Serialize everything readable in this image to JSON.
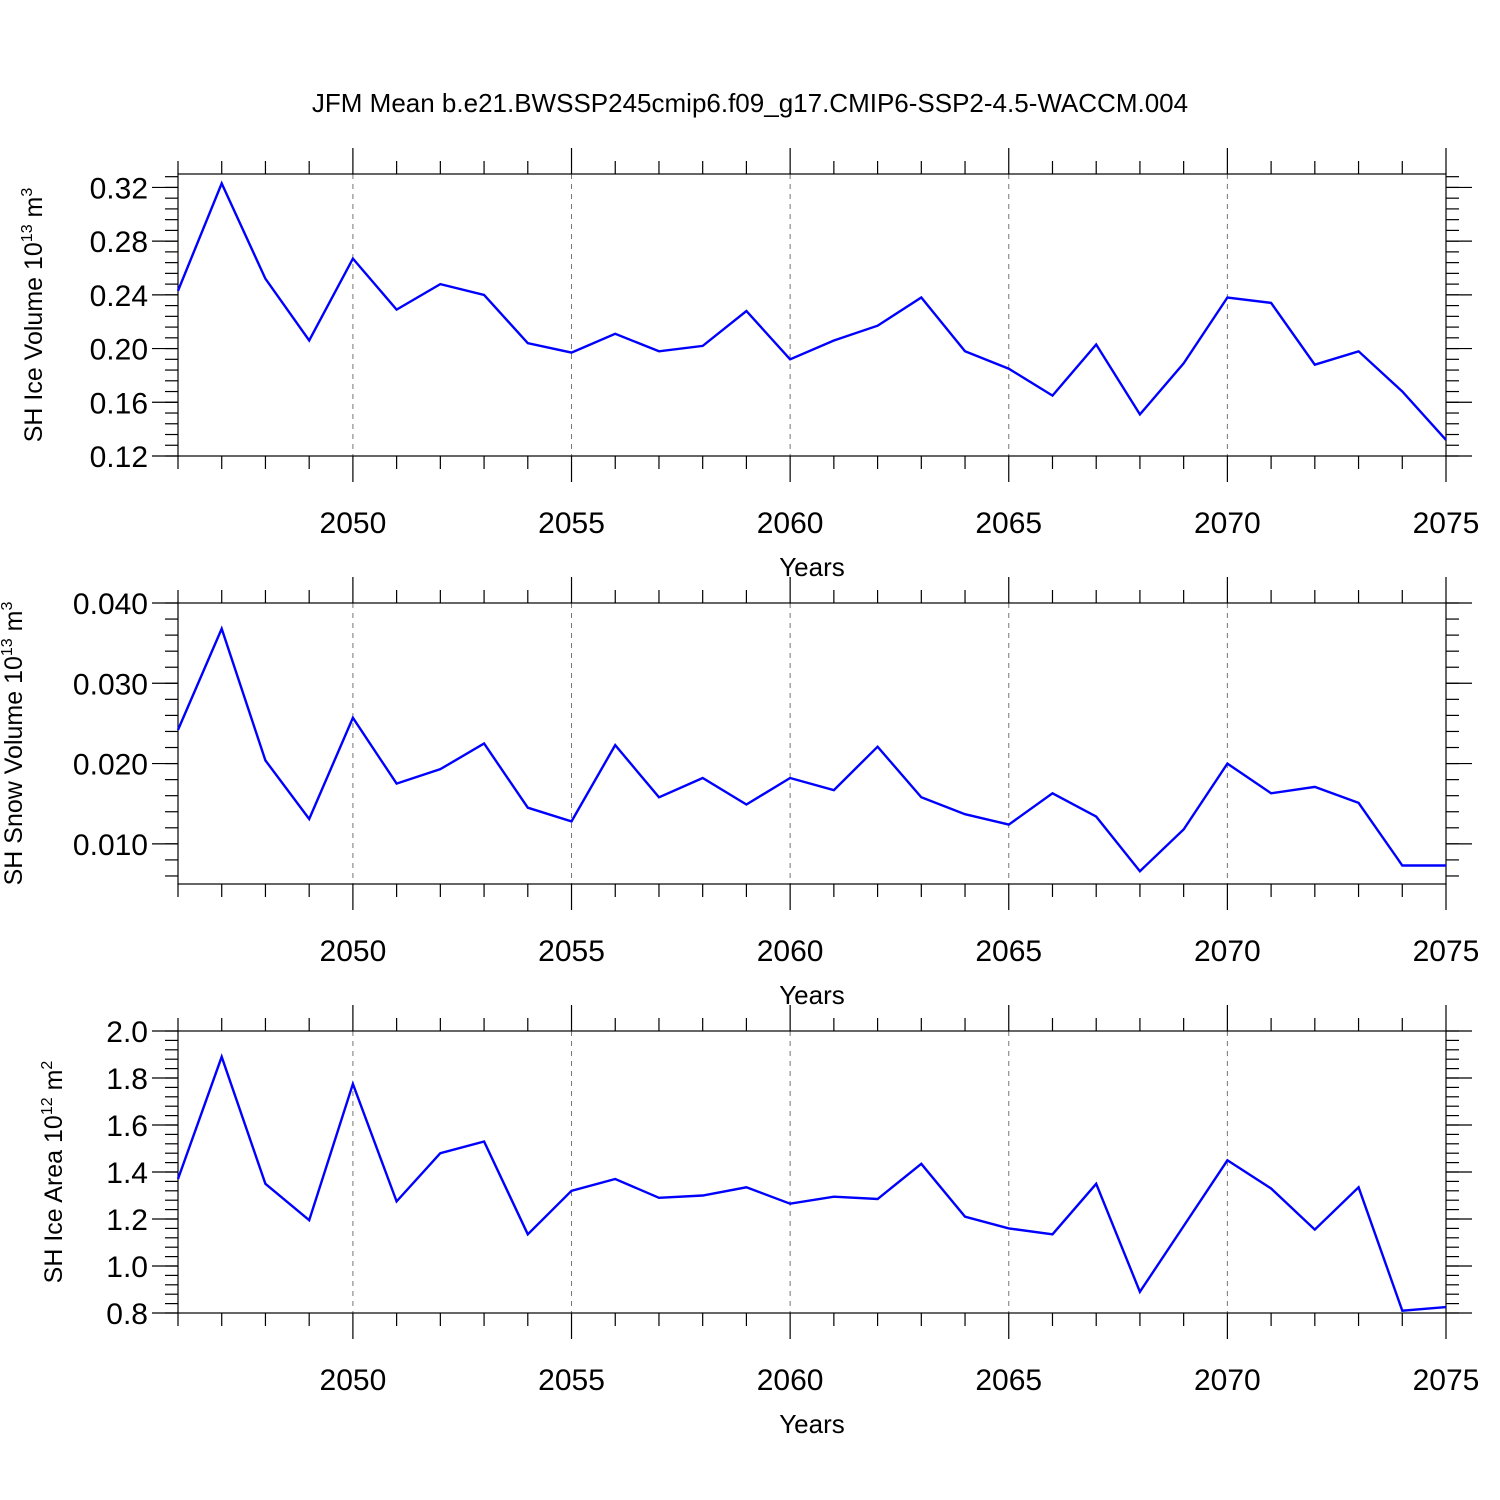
{
  "chart_data": {
    "title": "JFM Mean b.e21.BWSSP245cmip6.f09_g17.CMIP6-SSP2-4.5-WACCM.004",
    "panels": [
      {
        "type": "line",
        "ylabel_main": "SH Ice Volume 10",
        "ylabel_exp": "13",
        "ylabel_unit": "m",
        "ylabel_unit_exp": "3",
        "xlabel": "Years",
        "xlim": [
          2046,
          2075
        ],
        "ylim": [
          0.12,
          0.33
        ],
        "yticks": [
          0.12,
          0.16,
          0.2,
          0.24,
          0.28,
          0.32
        ],
        "ytick_labels": [
          "0.12",
          "0.16",
          "0.20",
          "0.24",
          "0.28",
          "0.32"
        ],
        "yminor_step": 0.008,
        "xticks": [
          2050,
          2055,
          2060,
          2065,
          2070,
          2075
        ],
        "xtick_labels": [
          "2050",
          "2055",
          "2060",
          "2065",
          "2070",
          "2075"
        ],
        "x": [
          2046,
          2047,
          2048,
          2049,
          2050,
          2051,
          2052,
          2053,
          2054,
          2055,
          2056,
          2057,
          2058,
          2059,
          2060,
          2061,
          2062,
          2063,
          2064,
          2065,
          2066,
          2067,
          2068,
          2069,
          2070,
          2071,
          2072,
          2073,
          2074,
          2075
        ],
        "values": [
          0.243,
          0.323,
          0.252,
          0.206,
          0.267,
          0.229,
          0.248,
          0.24,
          0.204,
          0.197,
          0.211,
          0.198,
          0.202,
          0.228,
          0.192,
          0.206,
          0.217,
          0.238,
          0.198,
          0.185,
          0.165,
          0.203,
          0.151,
          0.189,
          0.238,
          0.234,
          0.188,
          0.198,
          0.168,
          0.132
        ]
      },
      {
        "type": "line",
        "ylabel_main": "SH Snow Volume 10",
        "ylabel_exp": "13",
        "ylabel_unit": "m",
        "ylabel_unit_exp": "3",
        "xlabel": "Years",
        "xlim": [
          2046,
          2075
        ],
        "ylim": [
          0.005,
          0.04
        ],
        "yticks": [
          0.01,
          0.02,
          0.03,
          0.04
        ],
        "ytick_labels": [
          "0.010",
          "0.020",
          "0.030",
          "0.040"
        ],
        "yminor_step": 0.002,
        "xticks": [
          2050,
          2055,
          2060,
          2065,
          2070,
          2075
        ],
        "xtick_labels": [
          "2050",
          "2055",
          "2060",
          "2065",
          "2070",
          "2075"
        ],
        "x": [
          2046,
          2047,
          2048,
          2049,
          2050,
          2051,
          2052,
          2053,
          2054,
          2055,
          2056,
          2057,
          2058,
          2059,
          2060,
          2061,
          2062,
          2063,
          2064,
          2065,
          2066,
          2067,
          2068,
          2069,
          2070,
          2071,
          2072,
          2073,
          2074,
          2075
        ],
        "values": [
          0.0242,
          0.0368,
          0.0204,
          0.0131,
          0.0257,
          0.0175,
          0.0193,
          0.0225,
          0.0145,
          0.0128,
          0.0223,
          0.0158,
          0.0182,
          0.0149,
          0.0182,
          0.0167,
          0.0221,
          0.0158,
          0.0137,
          0.0124,
          0.0163,
          0.0134,
          0.0066,
          0.0118,
          0.02,
          0.0163,
          0.0171,
          0.0151,
          0.0073,
          0.0073
        ]
      },
      {
        "type": "line",
        "ylabel_main": "SH Ice Area 10",
        "ylabel_exp": "12",
        "ylabel_unit": "m",
        "ylabel_unit_exp": "2",
        "xlabel": "Years",
        "xlim": [
          2046,
          2075
        ],
        "ylim": [
          0.8,
          2.0
        ],
        "yticks": [
          0.8,
          1.0,
          1.2,
          1.4,
          1.6,
          1.8,
          2.0
        ],
        "ytick_labels": [
          "0.8",
          "1.0",
          "1.2",
          "1.4",
          "1.6",
          "1.8",
          "2.0"
        ],
        "yminor_step": 0.04,
        "xticks": [
          2050,
          2055,
          2060,
          2065,
          2070,
          2075
        ],
        "xtick_labels": [
          "2050",
          "2055",
          "2060",
          "2065",
          "2070",
          "2075"
        ],
        "x": [
          2046,
          2047,
          2048,
          2049,
          2050,
          2051,
          2052,
          2053,
          2054,
          2055,
          2056,
          2057,
          2058,
          2059,
          2060,
          2061,
          2062,
          2063,
          2064,
          2065,
          2066,
          2067,
          2068,
          2069,
          2070,
          2071,
          2072,
          2073,
          2074,
          2075
        ],
        "values": [
          1.37,
          1.89,
          1.35,
          1.195,
          1.775,
          1.275,
          1.48,
          1.53,
          1.135,
          1.32,
          1.37,
          1.29,
          1.3,
          1.335,
          1.265,
          1.295,
          1.285,
          1.435,
          1.21,
          1.16,
          1.135,
          1.35,
          0.89,
          1.17,
          1.45,
          1.33,
          1.155,
          1.335,
          0.81,
          0.825
        ]
      }
    ]
  }
}
